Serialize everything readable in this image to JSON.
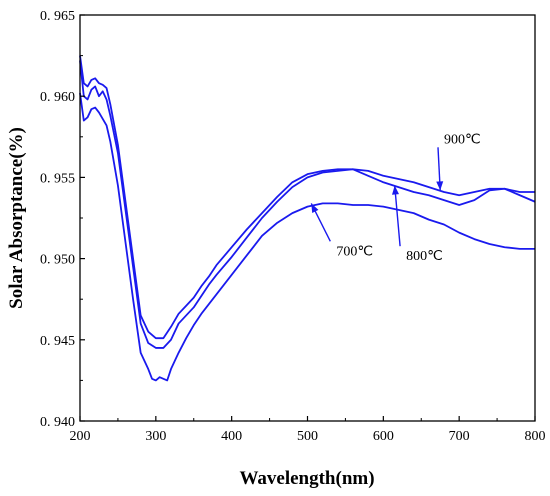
{
  "chart_data": {
    "type": "line",
    "title": "",
    "xlabel": "Wavelength(nm)",
    "ylabel": "Solar Absorptance(%)",
    "xlim": [
      200,
      800
    ],
    "ylim": [
      0.94,
      0.965
    ],
    "x_ticks": [
      200,
      300,
      400,
      500,
      600,
      700,
      800
    ],
    "x_tick_labels": [
      "200",
      "300",
      "400",
      "500",
      "600",
      "700",
      "800"
    ],
    "y_ticks": [
      0.94,
      0.945,
      0.95,
      0.955,
      0.96,
      0.965
    ],
    "y_tick_labels": [
      "0. 940",
      "0. 945",
      "0. 950",
      "0. 955",
      "0. 960",
      "0. 965"
    ],
    "grid": false,
    "legend": "none",
    "line_color": "#1a1aee",
    "annotations": [
      {
        "text": "900℃",
        "series_index": 0,
        "label_at": [
          680,
          0.9571
        ],
        "arrow_to": [
          675,
          0.9542
        ]
      },
      {
        "text": "800℃",
        "series_index": 1,
        "label_at": [
          630,
          0.9499
        ],
        "arrow_to": [
          615,
          0.9545
        ]
      },
      {
        "text": "700℃",
        "series_index": 2,
        "label_at": [
          538,
          0.9502
        ],
        "arrow_to": [
          505,
          0.9534
        ]
      }
    ],
    "series": [
      {
        "x": [
          200,
          205,
          210,
          215,
          220,
          225,
          230,
          235,
          240,
          250,
          260,
          270,
          280,
          290,
          300,
          310,
          320,
          330,
          340,
          350,
          360,
          370,
          380,
          400,
          420,
          440,
          460,
          480,
          500,
          520,
          540,
          560,
          580,
          600,
          620,
          640,
          660,
          680,
          700,
          720,
          740,
          760,
          780,
          800
        ],
        "y": [
          0.9625,
          0.9608,
          0.9606,
          0.961,
          0.9611,
          0.9608,
          0.9607,
          0.9605,
          0.9595,
          0.957,
          0.9535,
          0.95,
          0.9465,
          0.9455,
          0.9451,
          0.9451,
          0.9458,
          0.9466,
          0.9471,
          0.9476,
          0.9483,
          0.9489,
          0.9496,
          0.9507,
          0.9518,
          0.9528,
          0.9538,
          0.9547,
          0.9552,
          0.9554,
          0.9555,
          0.9555,
          0.9554,
          0.9551,
          0.9549,
          0.9547,
          0.9544,
          0.9541,
          0.9539,
          0.9541,
          0.9543,
          0.9543,
          0.9541,
          0.9541
        ]
      },
      {
        "x": [
          200,
          205,
          210,
          215,
          220,
          225,
          230,
          235,
          240,
          250,
          260,
          270,
          280,
          290,
          300,
          310,
          320,
          330,
          340,
          350,
          360,
          370,
          380,
          400,
          420,
          440,
          460,
          480,
          500,
          520,
          540,
          560,
          580,
          600,
          620,
          640,
          660,
          680,
          700,
          720,
          740,
          760,
          780,
          800
        ],
        "y": [
          0.9622,
          0.96,
          0.9598,
          0.9604,
          0.9606,
          0.96,
          0.9603,
          0.9598,
          0.9588,
          0.9565,
          0.953,
          0.9495,
          0.946,
          0.9448,
          0.9445,
          0.9445,
          0.945,
          0.946,
          0.9465,
          0.947,
          0.9477,
          0.9484,
          0.949,
          0.9501,
          0.9513,
          0.9525,
          0.9535,
          0.9544,
          0.955,
          0.9553,
          0.9554,
          0.9555,
          0.9551,
          0.9547,
          0.9544,
          0.9541,
          0.9539,
          0.9536,
          0.9533,
          0.9536,
          0.9542,
          0.9543,
          0.9539,
          0.9535
        ]
      },
      {
        "x": [
          200,
          205,
          210,
          215,
          220,
          225,
          230,
          235,
          240,
          250,
          260,
          270,
          280,
          290,
          295,
          300,
          305,
          310,
          315,
          320,
          330,
          340,
          350,
          360,
          370,
          380,
          400,
          420,
          440,
          460,
          480,
          500,
          520,
          540,
          560,
          580,
          600,
          620,
          640,
          660,
          680,
          700,
          720,
          740,
          760,
          780,
          800
        ],
        "y": [
          0.9602,
          0.9585,
          0.9587,
          0.9592,
          0.9593,
          0.959,
          0.9586,
          0.9582,
          0.9572,
          0.9545,
          0.951,
          0.9475,
          0.9442,
          0.9432,
          0.9426,
          0.9425,
          0.9427,
          0.9426,
          0.9425,
          0.9432,
          0.9442,
          0.9451,
          0.9459,
          0.9466,
          0.9472,
          0.9478,
          0.949,
          0.9502,
          0.9514,
          0.9522,
          0.9528,
          0.9532,
          0.9534,
          0.9534,
          0.9533,
          0.9533,
          0.9532,
          0.953,
          0.9528,
          0.9524,
          0.9521,
          0.9516,
          0.9512,
          0.9509,
          0.9507,
          0.9506,
          0.9506
        ]
      }
    ]
  }
}
